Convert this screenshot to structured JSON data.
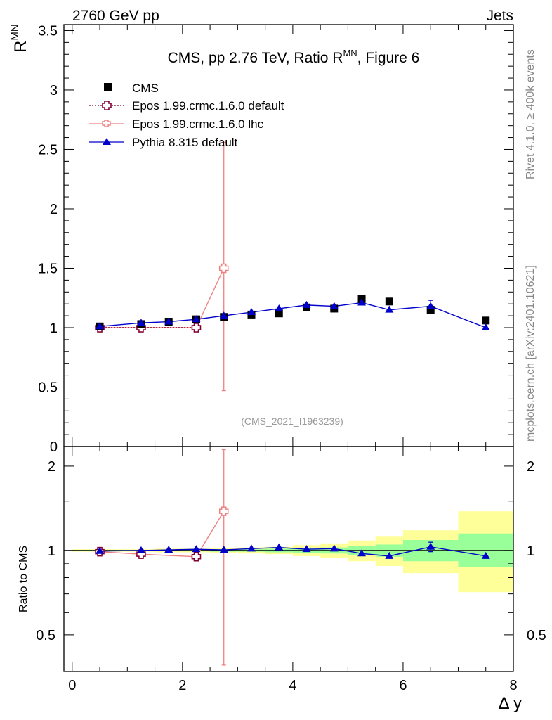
{
  "header": {
    "left": "2760 GeV pp",
    "right": "Jets"
  },
  "sidebar": {
    "rivet": "Rivet 4.1.0, ≥ 400k events",
    "mcplots": "mcplots.cern.ch [arXiv:2401.10621]"
  },
  "colors": {
    "cms": "#000000",
    "epos_default": "#800033",
    "epos_lhc": "#f08080",
    "pythia": "#0000cc",
    "band_inner": "#99ff99",
    "band_outer": "#ffff99"
  },
  "chart_data": {
    "type": "line",
    "title_main": "CMS, pp 2.76 TeV, Ratio R",
    "title_sup": "MN",
    "title_tail": ", Figure 6",
    "ylabel": "R",
    "ylabel_sup": "MN",
    "xlabel": "Δ y",
    "ratio_ylabel": "Ratio to CMS",
    "watermark": "(CMS_2021_I1963239)",
    "xlim": [
      -0.15,
      8.0
    ],
    "ylim": [
      0,
      3.55
    ],
    "ratio_ylim": [
      0.37,
      2.35
    ],
    "xticks": [
      0,
      2,
      4,
      6,
      8
    ],
    "yticks": [
      0.5,
      1,
      1.5,
      2,
      2.5,
      3,
      3.5
    ],
    "ylabels": [
      "0",
      "0.5",
      "1",
      "1.5",
      "2",
      "2.5",
      "3",
      "3.5"
    ],
    "ratio_yticks": [
      0.5,
      1,
      2
    ],
    "ratio_ylabels": [
      "0.5",
      "1",
      "2"
    ],
    "legend": [
      "CMS",
      "Epos 1.99.crmc.1.6.0 default",
      "Epos 1.99.crmc.1.6.0 lhc",
      "Pythia 8.315 default"
    ],
    "cms": {
      "x": [
        0.5,
        1.25,
        1.75,
        2.25,
        2.75,
        3.25,
        3.75,
        4.25,
        4.75,
        5.25,
        5.75,
        6.5,
        7.5
      ],
      "y": [
        1.01,
        1.03,
        1.05,
        1.07,
        1.09,
        1.11,
        1.12,
        1.17,
        1.16,
        1.24,
        1.22,
        1.15,
        1.06
      ]
    },
    "epos_default": {
      "x": [
        0.5,
        1.25,
        2.25
      ],
      "y": [
        1.0,
        1.0,
        1.0
      ]
    },
    "epos_lhc": {
      "x": [
        0.5,
        1.25,
        2.25,
        2.75
      ],
      "y": [
        1.0,
        1.0,
        1.0,
        1.5
      ],
      "err_low": [
        0,
        0,
        0,
        1.03
      ],
      "err_high": [
        0,
        0,
        0,
        1.06
      ],
      "ratio": [
        0.99,
        0.97,
        0.95,
        1.38
      ],
      "ratio_err_low": [
        0,
        0,
        0,
        0.99
      ],
      "ratio_err_high": [
        0,
        0,
        0,
        0.91
      ]
    },
    "pythia": {
      "x": [
        0.5,
        1.25,
        1.75,
        2.25,
        2.75,
        3.25,
        3.75,
        4.25,
        4.75,
        5.25,
        5.75,
        6.5,
        7.5
      ],
      "y": [
        1.01,
        1.04,
        1.05,
        1.07,
        1.1,
        1.13,
        1.16,
        1.19,
        1.18,
        1.21,
        1.15,
        1.18,
        1.0
      ],
      "err": [
        0,
        0,
        0,
        0,
        0,
        0,
        0,
        0,
        0,
        0,
        0,
        0.05,
        0
      ],
      "ratio": [
        0.995,
        1.0,
        1.005,
        1.01,
        1.005,
        1.015,
        1.025,
        1.01,
        1.015,
        0.975,
        0.955,
        1.03,
        0.955
      ],
      "ratio_err": [
        0,
        0,
        0,
        0,
        0,
        0,
        0,
        0,
        0,
        0,
        0,
        0.04,
        0
      ]
    },
    "bands": [
      {
        "x0": 0.0,
        "x1": 1.0,
        "in_lo": 0.995,
        "in_hi": 1.005,
        "out_lo": 0.99,
        "out_hi": 1.01
      },
      {
        "x0": 1.0,
        "x1": 1.5,
        "in_lo": 0.995,
        "in_hi": 1.005,
        "out_lo": 0.99,
        "out_hi": 1.01
      },
      {
        "x0": 1.5,
        "x1": 2.0,
        "in_lo": 0.995,
        "in_hi": 1.005,
        "out_lo": 0.985,
        "out_hi": 1.015
      },
      {
        "x0": 2.0,
        "x1": 2.5,
        "in_lo": 0.993,
        "in_hi": 1.007,
        "out_lo": 0.985,
        "out_hi": 1.015
      },
      {
        "x0": 2.5,
        "x1": 3.0,
        "in_lo": 0.99,
        "in_hi": 1.01,
        "out_lo": 0.98,
        "out_hi": 1.02
      },
      {
        "x0": 3.0,
        "x1": 3.5,
        "in_lo": 0.99,
        "in_hi": 1.01,
        "out_lo": 0.975,
        "out_hi": 1.025
      },
      {
        "x0": 3.5,
        "x1": 4.0,
        "in_lo": 0.985,
        "in_hi": 1.015,
        "out_lo": 0.97,
        "out_hi": 1.03
      },
      {
        "x0": 4.0,
        "x1": 4.5,
        "in_lo": 0.98,
        "in_hi": 1.02,
        "out_lo": 0.955,
        "out_hi": 1.045
      },
      {
        "x0": 4.5,
        "x1": 5.0,
        "in_lo": 0.975,
        "in_hi": 1.025,
        "out_lo": 0.94,
        "out_hi": 1.06
      },
      {
        "x0": 5.0,
        "x1": 5.5,
        "in_lo": 0.965,
        "in_hi": 1.035,
        "out_lo": 0.915,
        "out_hi": 1.085
      },
      {
        "x0": 5.5,
        "x1": 6.0,
        "in_lo": 0.95,
        "in_hi": 1.05,
        "out_lo": 0.88,
        "out_hi": 1.12
      },
      {
        "x0": 6.0,
        "x1": 7.0,
        "in_lo": 0.915,
        "in_hi": 1.09,
        "out_lo": 0.83,
        "out_hi": 1.18
      },
      {
        "x0": 7.0,
        "x1": 8.0,
        "in_lo": 0.87,
        "in_hi": 1.15,
        "out_lo": 0.71,
        "out_hi": 1.38
      }
    ]
  }
}
